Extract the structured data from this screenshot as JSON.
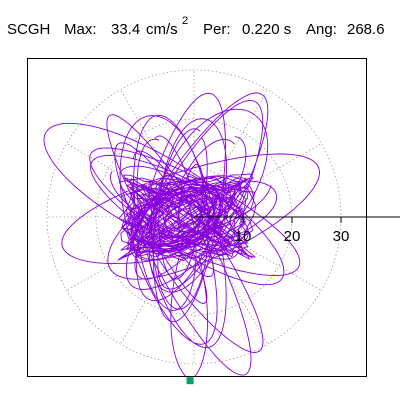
{
  "header": {
    "station": "SCGH",
    "max_label": "Max:",
    "max_value": "33.4",
    "max_unit": "cm/s",
    "max_unit_exponent": "2",
    "per_label": "Per:",
    "per_value": "0.220 s",
    "ang_label": "Ang:",
    "ang_value": "268.6"
  },
  "chart_data": {
    "type": "scatter",
    "title": "",
    "xlabel": "",
    "ylabel": "",
    "xlim": [
      -35,
      35
    ],
    "ylim": [
      -35,
      35
    ],
    "grid": "polar-dotted",
    "rings": [
      10,
      20,
      30
    ],
    "spokes_deg": [
      0,
      30,
      60,
      90,
      120,
      150,
      180,
      210,
      240,
      270,
      300,
      330
    ],
    "tick_labels": [
      "10",
      "20",
      "30"
    ],
    "max_amplitude": 33.4,
    "max_angle_deg": 268.6,
    "peak_marker": {
      "x": -0.8,
      "y": -33.4
    },
    "orbit": {
      "description_lobes": [
        {
          "cx": -2.6,
          "cy": 0.0,
          "rx": 10.0,
          "ry": 6.0,
          "rot": 30,
          "turns": 14
        },
        {
          "cx": -2.0,
          "cy": 2.0,
          "rx": 25.0,
          "ry": 8.0,
          "rot": 78,
          "turns": 5
        },
        {
          "cx": -4.0,
          "cy": -2.0,
          "rx": 28.0,
          "ry": 9.0,
          "rot": 100,
          "turns": 5
        },
        {
          "cx": -4.0,
          "cy": 2.0,
          "rx": 26.0,
          "ry": 8.0,
          "rot": 150,
          "turns": 4
        },
        {
          "cx": 0.0,
          "cy": 0.0,
          "rx": 27.0,
          "ry": 10.0,
          "rot": 20,
          "turns": 4
        },
        {
          "cx": -3.0,
          "cy": -5.0,
          "rx": 29.0,
          "ry": 7.0,
          "rot": 120,
          "turns": 4
        },
        {
          "cx": 2.0,
          "cy": 4.0,
          "rx": 24.0,
          "ry": 9.0,
          "rot": 60,
          "turns": 4
        }
      ]
    }
  },
  "colors": {
    "trace": "#8800dd",
    "peak_marker": "#00a070",
    "grid": "#888888",
    "axis": "#000000",
    "frame": "#000000",
    "background": "#ffffff"
  }
}
